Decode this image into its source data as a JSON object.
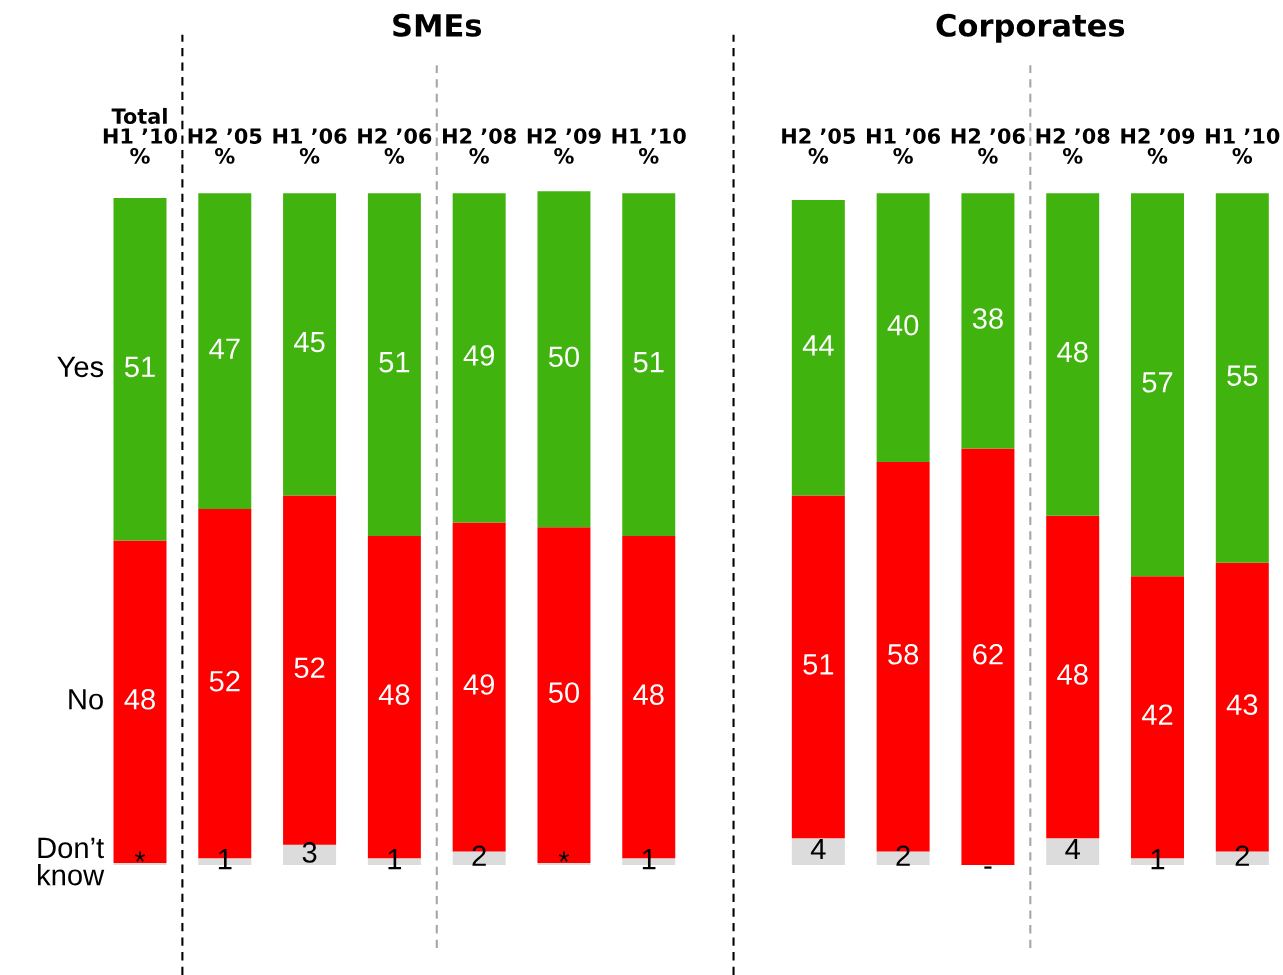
{
  "chart_data": {
    "type": "bar",
    "stacked": true,
    "categories": [
      "Total\nH1 ’10\n%",
      "H2 ’05\n%",
      "H1 ’06\n%",
      "H2 ’06\n%",
      "H2 ’08\n%",
      "H2 ’09\n%",
      "H1 ’10\n%",
      null,
      "H2 ’05\n%",
      "H1 ’06\n%",
      "H2 ’06\n%",
      "H2 ’08\n%",
      "H2 ’09\n%",
      "H1 ’10\n%"
    ],
    "series": [
      {
        "name": "Don’t know",
        "color": "#dcdcdc",
        "values": [
          0.3,
          1,
          3,
          1,
          2,
          0.3,
          1,
          null,
          4,
          2,
          0,
          4,
          1,
          2
        ],
        "value_labels": [
          "*",
          "1",
          "3",
          "1",
          "2",
          "*",
          "1",
          null,
          "4",
          "2",
          "-",
          "4",
          "1",
          "2"
        ]
      },
      {
        "name": "No",
        "color": "#ff0000",
        "values": [
          48,
          52,
          52,
          48,
          49,
          50,
          48,
          null,
          51,
          58,
          62,
          48,
          42,
          43
        ],
        "value_labels": [
          "48",
          "52",
          "52",
          "48",
          "49",
          "50",
          "48",
          null,
          "51",
          "58",
          "62",
          "48",
          "42",
          "43"
        ]
      },
      {
        "name": "Yes",
        "color": "#41b30f",
        "values": [
          51,
          47,
          45,
          51,
          49,
          50,
          51,
          null,
          44,
          40,
          38,
          48,
          57,
          55
        ],
        "value_labels": [
          "51",
          "47",
          "45",
          "51",
          "49",
          "50",
          "51",
          null,
          "44",
          "40",
          "38",
          "48",
          "57",
          "55"
        ]
      }
    ],
    "ylim": [
      0,
      100.5
    ],
    "tick_labels": "x",
    "annotations": [
      "SMEs",
      "Corporates"
    ]
  }
}
